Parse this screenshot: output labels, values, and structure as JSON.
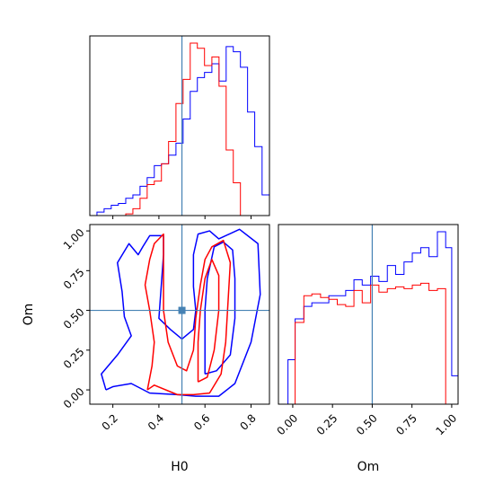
{
  "chart_data": {
    "type": "corner",
    "colors": {
      "run_a": "#0000ff",
      "run_b": "#ff0000",
      "truth": "#4682b4",
      "axes": "#000000"
    },
    "truth": {
      "H0": 0.5,
      "Om": 0.5
    },
    "parameters": [
      {
        "name": "H0",
        "label": "H0",
        "range": [
          0.1,
          0.88
        ],
        "ticks": [
          "0.2",
          "0.4",
          "0.6",
          "0.8"
        ],
        "tick_values": [
          0.2,
          0.4,
          0.6,
          0.8
        ]
      },
      {
        "name": "Om",
        "label": "Om",
        "range": [
          -0.09,
          1.04
        ],
        "ticks": [
          "0.00",
          "0.25",
          "0.50",
          "0.75",
          "1.00"
        ],
        "tick_values": [
          0.0,
          0.25,
          0.5,
          0.75,
          1.0
        ]
      }
    ],
    "hist_H0": {
      "bin_edges": [
        0.1,
        0.131,
        0.162,
        0.193,
        0.224,
        0.256,
        0.287,
        0.318,
        0.349,
        0.38,
        0.411,
        0.442,
        0.474,
        0.505,
        0.536,
        0.567,
        0.598,
        0.63,
        0.661,
        0.692,
        0.723,
        0.754,
        0.785,
        0.816,
        0.848,
        0.88
      ],
      "series": [
        {
          "color": "blue",
          "counts": [
            0.0,
            0.02,
            0.04,
            0.06,
            0.07,
            0.1,
            0.12,
            0.17,
            0.22,
            0.29,
            0.3,
            0.35,
            0.42,
            0.56,
            0.72,
            0.8,
            0.83,
            0.88,
            0.78,
            0.98,
            0.95,
            0.86,
            0.6,
            0.4,
            0.12
          ]
        },
        {
          "color": "red",
          "counts": [
            0.0,
            0.0,
            0.0,
            0.0,
            0.0,
            0.01,
            0.04,
            0.1,
            0.18,
            0.2,
            0.3,
            0.43,
            0.65,
            0.79,
            1.0,
            0.97,
            0.87,
            0.92,
            0.75,
            0.38,
            0.19,
            0.0,
            0.0,
            0.0,
            0.0
          ]
        }
      ]
    },
    "hist_Om": {
      "bin_edges": [
        -0.09,
        -0.03,
        0.015,
        0.07,
        0.12,
        0.175,
        0.227,
        0.28,
        0.333,
        0.385,
        0.437,
        0.49,
        0.542,
        0.595,
        0.647,
        0.7,
        0.752,
        0.805,
        0.857,
        0.91,
        0.962,
        1.0,
        1.04
      ],
      "series": [
        {
          "color": "blue",
          "counts": [
            0.0,
            0.25,
            0.48,
            0.55,
            0.57,
            0.57,
            0.61,
            0.61,
            0.64,
            0.7,
            0.67,
            0.72,
            0.69,
            0.78,
            0.73,
            0.8,
            0.85,
            0.88,
            0.83,
            0.97,
            0.88,
            0.16
          ]
        },
        {
          "color": "red",
          "counts": [
            0.0,
            0.0,
            0.46,
            0.61,
            0.62,
            0.6,
            0.59,
            0.56,
            0.55,
            0.64,
            0.57,
            0.67,
            0.63,
            0.65,
            0.66,
            0.65,
            0.67,
            0.68,
            0.64,
            0.65,
            0.0,
            0.0
          ]
        }
      ]
    },
    "contours_H0_Om": [
      {
        "color": "blue",
        "points": [
          [
            0.17,
            0.0
          ],
          [
            0.2,
            0.02
          ],
          [
            0.28,
            0.04
          ],
          [
            0.36,
            -0.02
          ],
          [
            0.48,
            -0.03
          ],
          [
            0.56,
            -0.04
          ],
          [
            0.66,
            -0.04
          ],
          [
            0.73,
            0.04
          ],
          [
            0.8,
            0.3
          ],
          [
            0.84,
            0.6
          ],
          [
            0.83,
            0.92
          ],
          [
            0.75,
            1.01
          ],
          [
            0.66,
            0.95
          ],
          [
            0.62,
            1.0
          ],
          [
            0.57,
            0.98
          ],
          [
            0.55,
            0.85
          ],
          [
            0.55,
            0.65
          ],
          [
            0.56,
            0.5
          ],
          [
            0.55,
            0.38
          ],
          [
            0.5,
            0.32
          ],
          [
            0.45,
            0.38
          ],
          [
            0.4,
            0.45
          ],
          [
            0.41,
            0.65
          ],
          [
            0.42,
            0.85
          ],
          [
            0.42,
            0.97
          ],
          [
            0.36,
            0.97
          ],
          [
            0.33,
            0.9
          ],
          [
            0.31,
            0.85
          ],
          [
            0.27,
            0.92
          ],
          [
            0.22,
            0.8
          ],
          [
            0.24,
            0.62
          ],
          [
            0.25,
            0.46
          ],
          [
            0.28,
            0.34
          ],
          [
            0.22,
            0.22
          ],
          [
            0.15,
            0.1
          ],
          [
            0.17,
            0.0
          ]
        ]
      },
      {
        "color": "blue",
        "points": [
          [
            0.6,
            0.1
          ],
          [
            0.65,
            0.12
          ],
          [
            0.71,
            0.22
          ],
          [
            0.73,
            0.45
          ],
          [
            0.73,
            0.7
          ],
          [
            0.72,
            0.88
          ],
          [
            0.68,
            0.93
          ],
          [
            0.64,
            0.9
          ],
          [
            0.61,
            0.7
          ],
          [
            0.6,
            0.5
          ],
          [
            0.6,
            0.3
          ],
          [
            0.6,
            0.1
          ]
        ]
      },
      {
        "color": "red",
        "points": [
          [
            0.35,
            0.0
          ],
          [
            0.38,
            0.03
          ],
          [
            0.48,
            -0.03
          ],
          [
            0.55,
            -0.03
          ],
          [
            0.62,
            -0.02
          ],
          [
            0.67,
            0.1
          ],
          [
            0.69,
            0.3
          ],
          [
            0.7,
            0.55
          ],
          [
            0.71,
            0.8
          ],
          [
            0.68,
            0.94
          ],
          [
            0.63,
            0.9
          ],
          [
            0.6,
            0.82
          ],
          [
            0.58,
            0.66
          ],
          [
            0.56,
            0.45
          ],
          [
            0.55,
            0.25
          ],
          [
            0.52,
            0.12
          ],
          [
            0.48,
            0.15
          ],
          [
            0.44,
            0.3
          ],
          [
            0.42,
            0.5
          ],
          [
            0.42,
            0.8
          ],
          [
            0.42,
            0.98
          ],
          [
            0.38,
            0.92
          ],
          [
            0.36,
            0.82
          ],
          [
            0.34,
            0.66
          ],
          [
            0.36,
            0.5
          ],
          [
            0.38,
            0.3
          ],
          [
            0.37,
            0.15
          ],
          [
            0.35,
            0.0
          ]
        ]
      },
      {
        "color": "red",
        "points": [
          [
            0.57,
            0.05
          ],
          [
            0.61,
            0.08
          ],
          [
            0.64,
            0.25
          ],
          [
            0.66,
            0.5
          ],
          [
            0.66,
            0.72
          ],
          [
            0.63,
            0.82
          ],
          [
            0.6,
            0.7
          ],
          [
            0.58,
            0.5
          ],
          [
            0.57,
            0.3
          ],
          [
            0.57,
            0.05
          ]
        ]
      }
    ]
  },
  "labels": {
    "x_H0": "H0",
    "x_Om": "Om",
    "y_Om": "Om"
  }
}
